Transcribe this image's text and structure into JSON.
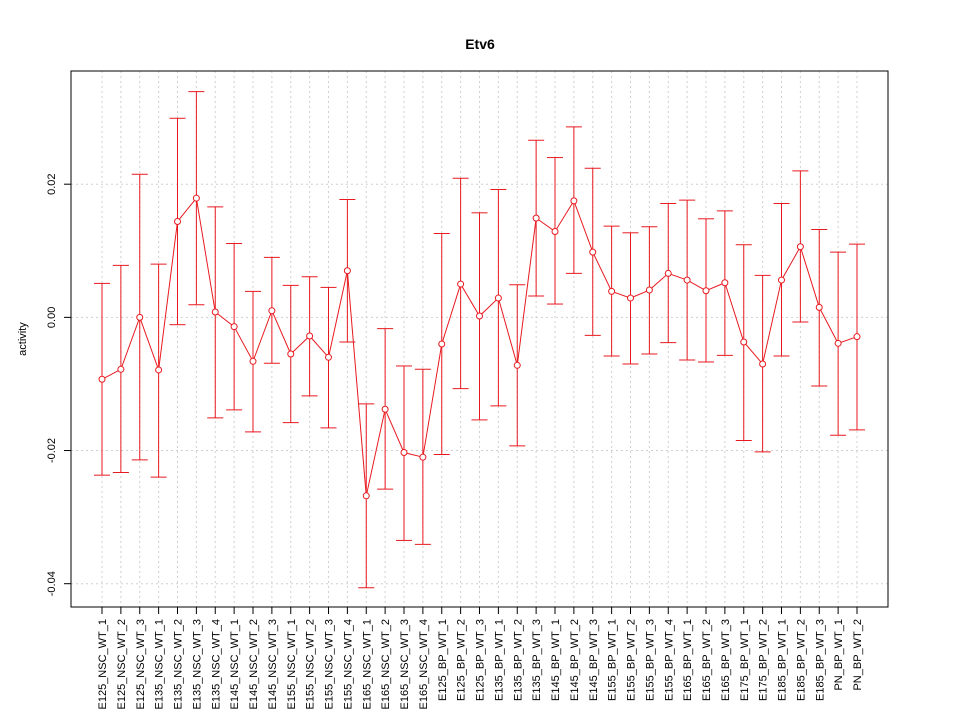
{
  "chart_data": {
    "type": "line",
    "title": "Etv6",
    "xlabel": "",
    "ylabel": "activity",
    "ylim": [
      -0.0435,
      0.037
    ],
    "yticks": [
      -0.04,
      -0.02,
      0.0,
      0.02
    ],
    "ytick_labels": [
      "-0.04",
      "-0.02",
      "0.00",
      "0.02"
    ],
    "grid": true,
    "legend": "none",
    "series_color": "#e8191f",
    "grid_color": "#d0d0d0",
    "categories": [
      "E125_NSC_WT_1",
      "E125_NSC_WT_2",
      "E125_NSC_WT_3",
      "E135_NSC_WT_1",
      "E135_NSC_WT_2",
      "E135_NSC_WT_3",
      "E135_NSC_WT_4",
      "E145_NSC_WT_1",
      "E145_NSC_WT_2",
      "E145_NSC_WT_3",
      "E155_NSC_WT_1",
      "E155_NSC_WT_2",
      "E155_NSC_WT_3",
      "E155_NSC_WT_4",
      "E165_NSC_WT_1",
      "E165_NSC_WT_2",
      "E165_NSC_WT_3",
      "E165_NSC_WT_4",
      "E125_BP_WT_1",
      "E125_BP_WT_2",
      "E125_BP_WT_3",
      "E135_BP_WT_1",
      "E135_BP_WT_2",
      "E135_BP_WT_3",
      "E145_BP_WT_1",
      "E145_BP_WT_2",
      "E145_BP_WT_3",
      "E155_BP_WT_1",
      "E155_BP_WT_2",
      "E155_BP_WT_3",
      "E155_BP_WT_4",
      "E165_BP_WT_1",
      "E165_BP_WT_2",
      "E165_BP_WT_3",
      "E175_BP_WT_1",
      "E175_BP_WT_2",
      "E185_BP_WT_1",
      "E185_BP_WT_2",
      "E185_BP_WT_3",
      "PN_BP_WT_1",
      "PN_BP_WT_2"
    ],
    "values": [
      -0.0093,
      -0.0078,
      0.0,
      -0.0079,
      0.0144,
      0.0179,
      0.0008,
      -0.0014,
      -0.0066,
      0.001,
      -0.0055,
      -0.0028,
      -0.006,
      0.007,
      -0.0268,
      -0.0138,
      -0.0203,
      -0.021,
      -0.004,
      0.005,
      0.0002,
      0.0029,
      -0.0072,
      0.0149,
      0.0129,
      0.0175,
      0.0098,
      0.0039,
      0.0029,
      0.0041,
      0.0066,
      0.0056,
      0.004,
      0.0052,
      -0.0037,
      -0.007,
      0.0056,
      0.0106,
      0.0015,
      -0.0039,
      -0.0029
    ],
    "upper": [
      0.0051,
      0.0078,
      0.0215,
      0.008,
      0.0299,
      0.0339,
      0.0166,
      0.0111,
      0.0039,
      0.009,
      0.0048,
      0.0061,
      0.0045,
      0.0177,
      -0.013,
      -0.0017,
      -0.0073,
      -0.0078,
      0.0126,
      0.0209,
      0.0157,
      0.0192,
      0.0049,
      0.0266,
      0.024,
      0.0286,
      0.0224,
      0.0137,
      0.0127,
      0.0136,
      0.0171,
      0.0176,
      0.0148,
      0.016,
      0.0109,
      0.0063,
      0.0171,
      0.022,
      0.0132,
      0.0098,
      0.011
    ],
    "lower": [
      -0.0237,
      -0.0233,
      -0.0214,
      -0.024,
      -0.0011,
      0.0019,
      -0.0151,
      -0.0139,
      -0.0172,
      -0.0069,
      -0.0158,
      -0.0118,
      -0.0166,
      -0.0037,
      -0.0406,
      -0.0258,
      -0.0335,
      -0.0341,
      -0.0206,
      -0.0107,
      -0.0154,
      -0.0133,
      -0.0193,
      0.0032,
      0.002,
      0.0066,
      -0.0027,
      -0.0058,
      -0.007,
      -0.0055,
      -0.0038,
      -0.0064,
      -0.0067,
      -0.0057,
      -0.0185,
      -0.0202,
      -0.0058,
      -0.0007,
      -0.0103,
      -0.0177,
      -0.0169
    ]
  }
}
